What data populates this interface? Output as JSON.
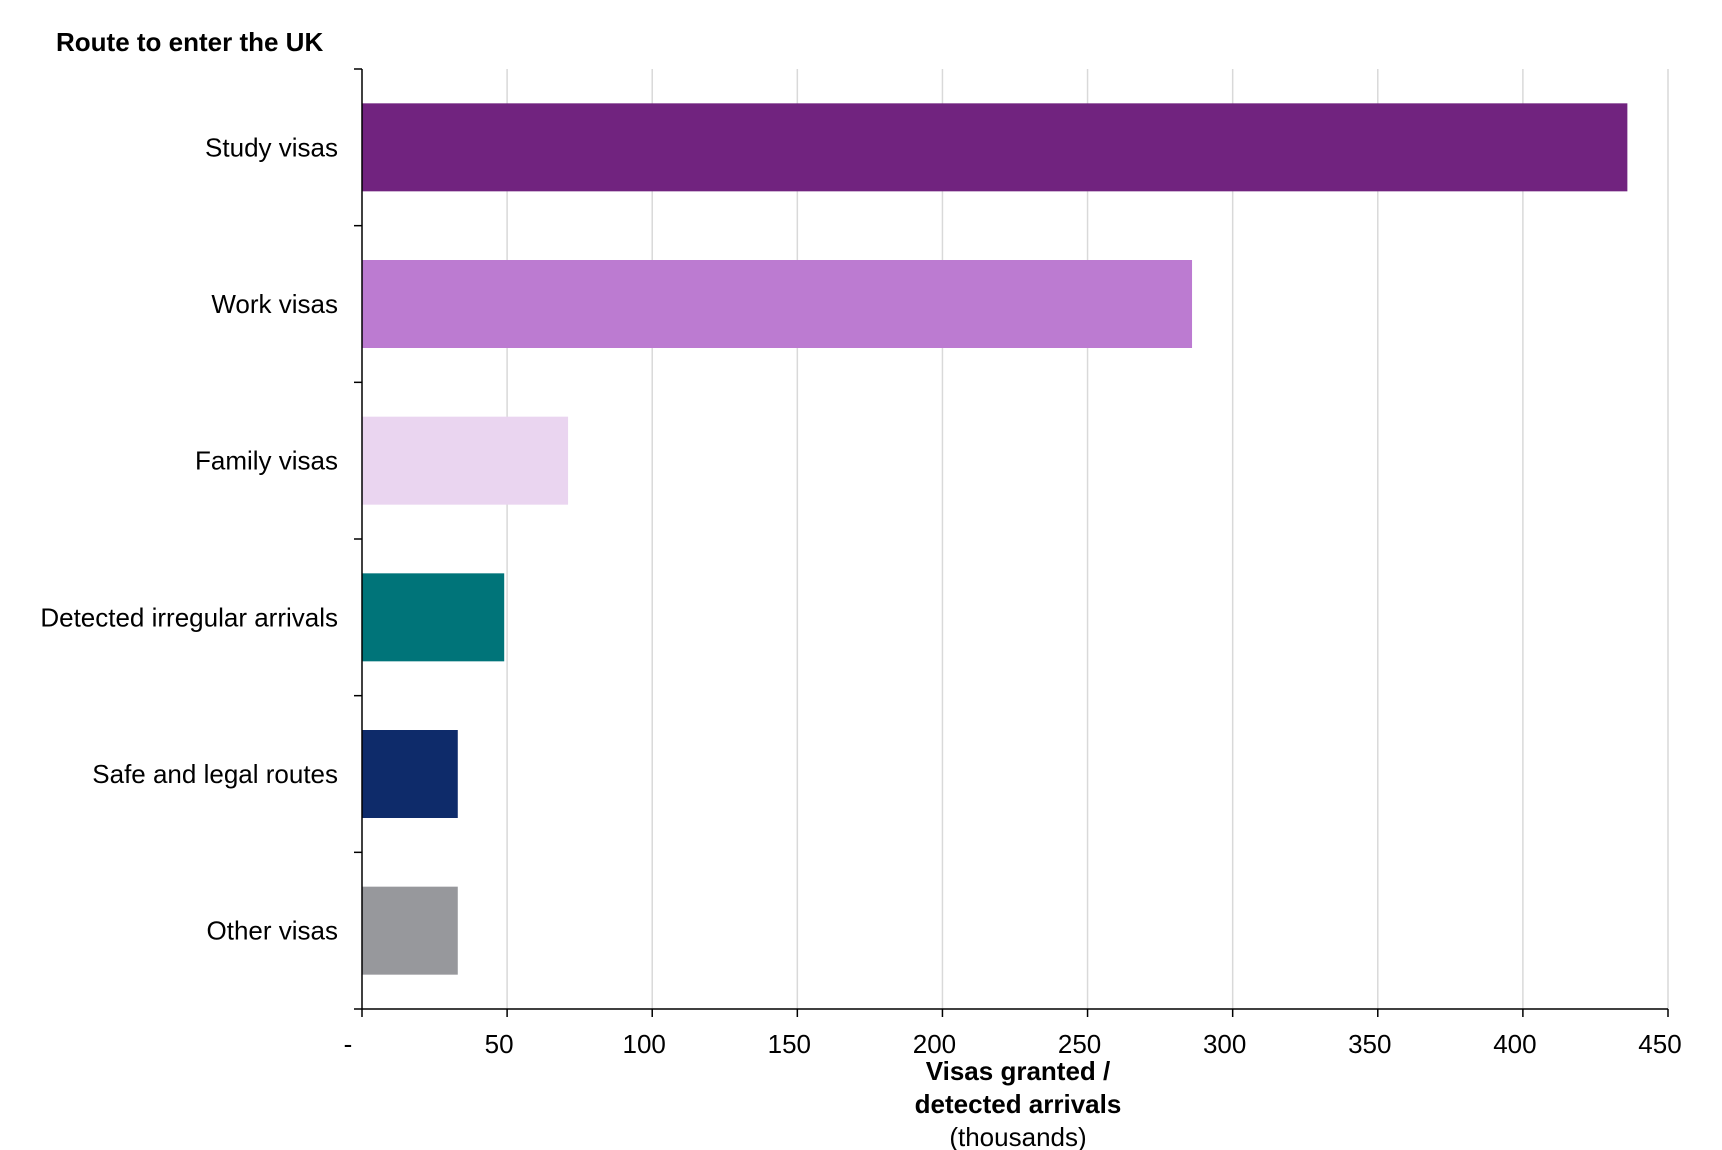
{
  "chart_data": {
    "type": "bar",
    "orientation": "horizontal",
    "ytitle": "Route to enter the UK",
    "xlabel_line1": "Visas granted /",
    "xlabel_line2": "detected arrivals",
    "xlabel_line3": "(thousands)",
    "categories": [
      "Study visas",
      "Work visas",
      "Family visas",
      "Detected irregular arrivals",
      "Safe and legal routes",
      "Other visas"
    ],
    "values": [
      436,
      286,
      71,
      49,
      33,
      33
    ],
    "colors": [
      "#71237F",
      "#BC7BD1",
      "#EAD5F0",
      "#007479",
      "#0E2B6A",
      "#97989C"
    ],
    "xlim": [
      0,
      450
    ],
    "xticks": [
      0,
      50,
      100,
      150,
      200,
      250,
      300,
      350,
      400,
      450
    ],
    "xtick_labels": [
      "-",
      "50",
      "100",
      "150",
      "200",
      "250",
      "300",
      "350",
      "400",
      "450"
    ],
    "grid": "vertical",
    "legend": "none"
  }
}
